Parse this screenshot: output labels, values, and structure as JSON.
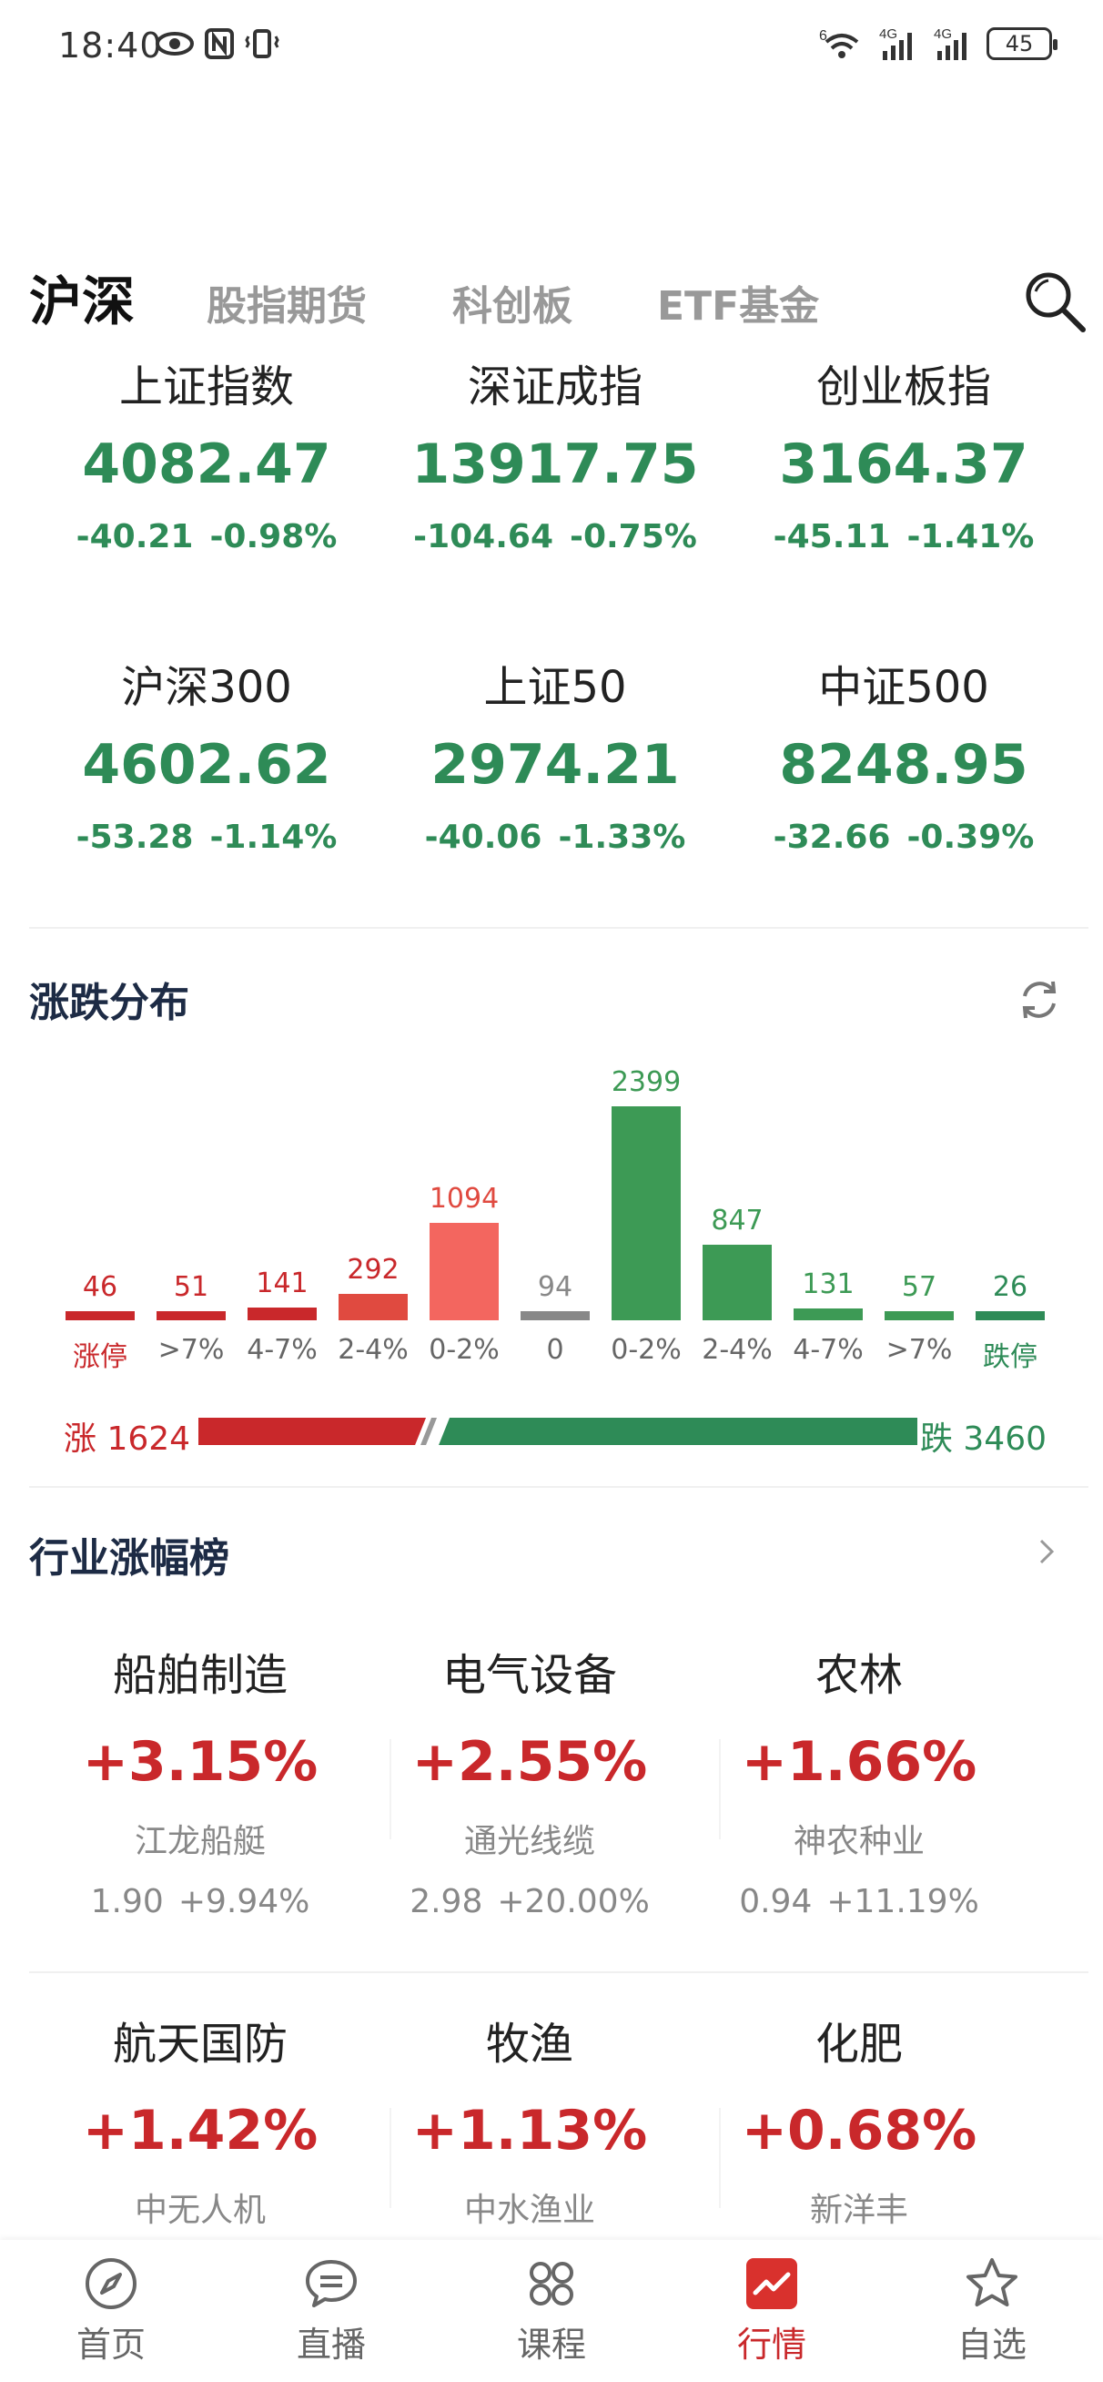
{
  "status_bar": {
    "time": "18:40",
    "battery": "45",
    "network_1": "4G",
    "network_2": "4G",
    "wifi_tag": "6"
  },
  "tabs": [
    {
      "label": "沪深",
      "active": true
    },
    {
      "label": "股指期货",
      "active": false
    },
    {
      "label": "科创板",
      "active": false
    },
    {
      "label": "ETF基金",
      "active": false
    }
  ],
  "indices": [
    {
      "name": "上证指数",
      "value": "4082.47",
      "change": "-40.21",
      "pct": "-0.98%"
    },
    {
      "name": "深证成指",
      "value": "13917.75",
      "change": "-104.64",
      "pct": "-0.75%"
    },
    {
      "name": "创业板指",
      "value": "3164.37",
      "change": "-45.11",
      "pct": "-1.41%"
    },
    {
      "name": "沪深300",
      "value": "4602.62",
      "change": "-53.28",
      "pct": "-1.14%"
    },
    {
      "name": "上证50",
      "value": "2974.21",
      "change": "-40.06",
      "pct": "-1.33%"
    },
    {
      "name": "中证500",
      "value": "8248.95",
      "change": "-32.66",
      "pct": "-0.39%"
    }
  ],
  "distribution": {
    "title": "涨跌分布",
    "up_label": "涨 1624",
    "down_label": "跌 3460",
    "up_total": 1624,
    "down_total": 3460,
    "colors": {
      "up": "#c9282b",
      "up_light": "#f3665f",
      "flat": "#888888",
      "down": "#3d9a55",
      "down_dark": "#2e8b57"
    }
  },
  "chart_data": {
    "type": "bar",
    "categories": [
      "涨停",
      ">7%",
      "4-7%",
      "2-4%",
      "0-2%",
      "0",
      "0-2%",
      "2-4%",
      "4-7%",
      ">7%",
      "跌停"
    ],
    "values": [
      46,
      51,
      141,
      292,
      1094,
      94,
      2399,
      847,
      131,
      57,
      26
    ],
    "value_labels": [
      "46",
      "51",
      "141",
      "292",
      "1094",
      "94",
      "2399",
      "847",
      "131",
      "57",
      "26"
    ],
    "bar_colors": [
      "#c9282b",
      "#c9282b",
      "#c9282b",
      "#e04a40",
      "#f3665f",
      "#888888",
      "#3d9a55",
      "#3d9a55",
      "#3d9a55",
      "#3d9a55",
      "#2e8b57"
    ],
    "label_colors": [
      "#c9282b",
      "#c9282b",
      "#c9282b",
      "#c9282b",
      "#e04a40",
      "#888888",
      "#3d9a55",
      "#3d9a55",
      "#3d9a55",
      "#3d9a55",
      "#2e8b57"
    ],
    "title": "",
    "xlabel": "",
    "ylabel": ""
  },
  "industry": {
    "title": "行业涨幅榜",
    "items": [
      {
        "name": "船舶制造",
        "pct": "+3.15%",
        "stock": "江龙船艇",
        "price": "1.90",
        "stock_pct": "+9.94%"
      },
      {
        "name": "电气设备",
        "pct": "+2.55%",
        "stock": "通光线缆",
        "price": "2.98",
        "stock_pct": "+20.00%"
      },
      {
        "name": "农林",
        "pct": "+1.66%",
        "stock": "神农种业",
        "price": "0.94",
        "stock_pct": "+11.19%"
      },
      {
        "name": "航天国防",
        "pct": "+1.42%",
        "stock": "中无人机",
        "price": "",
        "stock_pct": ""
      },
      {
        "name": "牧渔",
        "pct": "+1.13%",
        "stock": "中水渔业",
        "price": "",
        "stock_pct": ""
      },
      {
        "name": "化肥",
        "pct": "+0.68%",
        "stock": "新洋丰",
        "price": "",
        "stock_pct": ""
      }
    ]
  },
  "bottom_nav": [
    {
      "label": "首页",
      "icon": "compass-icon",
      "active": false
    },
    {
      "label": "直播",
      "icon": "chat-icon",
      "active": false
    },
    {
      "label": "课程",
      "icon": "grid-icon",
      "active": false
    },
    {
      "label": "行情",
      "icon": "chart-icon",
      "active": true
    },
    {
      "label": "自选",
      "icon": "star-icon",
      "active": false
    }
  ]
}
